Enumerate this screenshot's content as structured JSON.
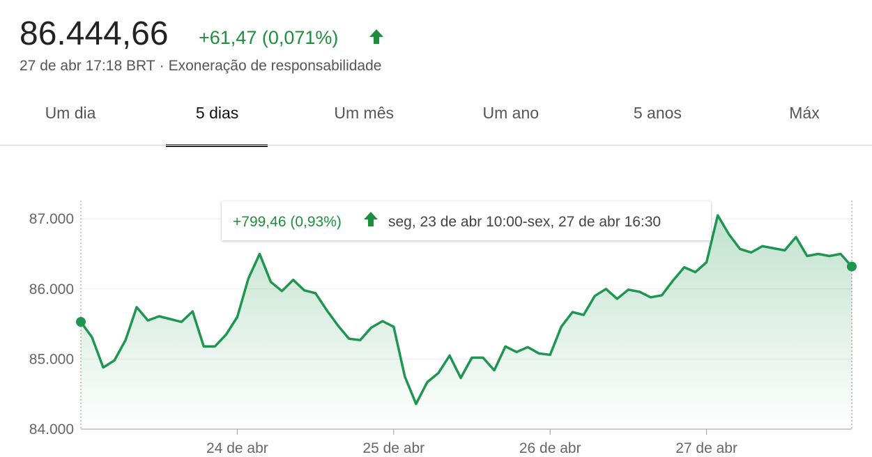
{
  "header": {
    "price": "86.444,66",
    "change": "+61,47 (0,071%)",
    "timestamp": "27 de abr 17:18 BRT",
    "separator": "·",
    "disclaimer": "Exoneração de responsabilidade"
  },
  "tabs": {
    "items": [
      "Um dia",
      "5 dias",
      "Um mês",
      "Um ano",
      "5 anos",
      "Máx"
    ],
    "active": 1
  },
  "tooltip": {
    "change": "+799,46 (0,93%)",
    "range": "seg, 23 de abr 10:00-sex, 27 de abr 16:30"
  },
  "chart_data": {
    "type": "line",
    "color": "#1e9650",
    "grid": true,
    "categories": [
      null,
      null,
      null,
      null,
      null,
      null,
      null,
      null,
      null,
      null,
      null,
      null,
      null,
      null,
      "24 de abr",
      null,
      null,
      null,
      null,
      null,
      null,
      null,
      null,
      null,
      null,
      null,
      null,
      null,
      "25 de abr",
      null,
      null,
      null,
      null,
      null,
      null,
      null,
      null,
      null,
      null,
      null,
      null,
      null,
      "26 de abr",
      null,
      null,
      null,
      null,
      null,
      null,
      null,
      null,
      null,
      null,
      null,
      null,
      null,
      "27 de abr",
      null,
      null,
      null,
      null,
      null,
      null,
      null,
      null,
      null,
      null,
      null,
      null,
      null
    ],
    "values": [
      85530,
      85310,
      84880,
      84980,
      85270,
      85740,
      85550,
      85610,
      85570,
      85530,
      85680,
      85180,
      85180,
      85350,
      85600,
      86150,
      86500,
      86100,
      85970,
      86130,
      85980,
      85940,
      85700,
      85480,
      85290,
      85270,
      85450,
      85540,
      85460,
      84750,
      84360,
      84670,
      84800,
      85050,
      84730,
      85020,
      85020,
      84840,
      85180,
      85100,
      85170,
      85080,
      85060,
      85460,
      85670,
      85630,
      85900,
      86000,
      85860,
      85990,
      85960,
      85880,
      85910,
      86120,
      86310,
      86240,
      86380,
      87050,
      86780,
      86570,
      86520,
      86610,
      86580,
      86550,
      86740,
      86470,
      86500,
      86470,
      86500,
      86320
    ],
    "ylim": [
      84000,
      87240
    ],
    "yticks": [
      {
        "value": 84000,
        "label": "84.000"
      },
      {
        "value": 85000,
        "label": "85.000"
      },
      {
        "value": 86000,
        "label": "86.000"
      },
      {
        "value": 87000,
        "label": "87.000"
      }
    ]
  }
}
